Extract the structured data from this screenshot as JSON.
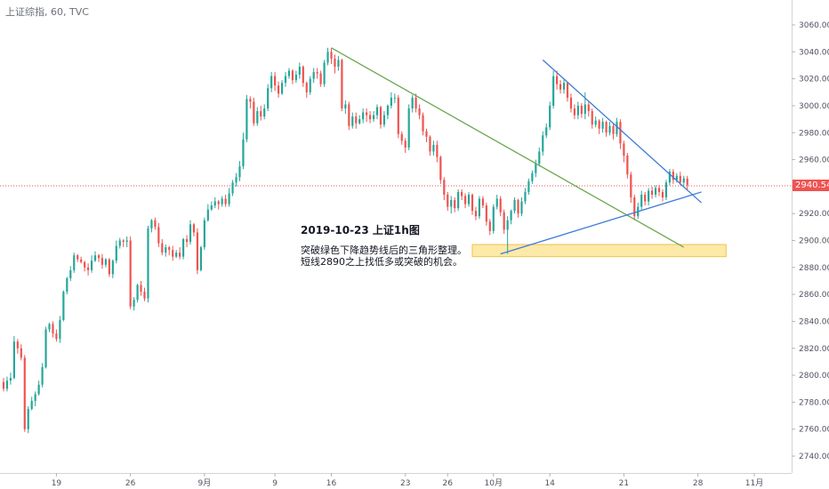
{
  "header": {
    "text": "上证综指, 60, TVC"
  },
  "last_price": {
    "label": "2940.542",
    "value": 2940.542,
    "color": "#ef5350"
  },
  "annotation": {
    "title": "2019-10-23 上证1h图",
    "lines": [
      "突破绿色下降趋势线后的三角形整理。",
      "短线2890之上找低多或突破的机会。"
    ]
  },
  "colors": {
    "up": "#26a69a",
    "down": "#ef5350",
    "green_line": "#6aa84f",
    "blue_line": "#3d7bd6",
    "zone_fill": "#fde9a8",
    "zone_stroke": "#f2c14e"
  },
  "chart_data": {
    "type": "candlestick",
    "title": "",
    "xlabel": "",
    "ylabel": "",
    "ylim": [
      2730,
      3070
    ],
    "y_ticks": [
      2740,
      2760,
      2780,
      2800,
      2820,
      2840,
      2860,
      2880,
      2900,
      2920,
      2940,
      2960,
      2980,
      3000,
      3020,
      3040,
      3060
    ],
    "y_tick_labels": [
      "2740.000",
      "2760.000",
      "2780.000",
      "2800.000",
      "2820.000",
      "2840.000",
      "2860.000",
      "2880.000",
      "2900.000",
      "2920.000",
      "2940.000",
      "2960.000",
      "2980.000",
      "3000.000",
      "3020.000",
      "3040.000",
      "3060.000"
    ],
    "x_ticks": [
      {
        "label": "19",
        "idx": 15
      },
      {
        "label": "26",
        "idx": 36
      },
      {
        "label": "9月",
        "idx": 57
      },
      {
        "label": "9",
        "idx": 77
      },
      {
        "label": "16",
        "idx": 93
      },
      {
        "label": "23",
        "idx": 114
      },
      {
        "label": "26",
        "idx": 126
      },
      {
        "label": "10月",
        "idx": 139
      },
      {
        "label": "14",
        "idx": 155
      },
      {
        "label": "21",
        "idx": 176
      },
      {
        "label": "28",
        "idx": 197
      },
      {
        "label": "11月",
        "idx": 213
      }
    ],
    "x_range": [
      0,
      232
    ],
    "grid": false,
    "trendlines": [
      {
        "name": "green-downtrend",
        "x1": 93,
        "y1": 3043,
        "x2": 193,
        "y2": 2895
      },
      {
        "name": "blue-upper",
        "x1": 153,
        "y1": 3034,
        "x2": 198,
        "y2": 2928
      },
      {
        "name": "blue-lower",
        "x1": 141,
        "y1": 2890,
        "x2": 198,
        "y2": 2936
      }
    ],
    "zone": {
      "x1": 133,
      "x2": 205,
      "y1": 2888,
      "y2": 2897
    },
    "candles": [
      [
        2795,
        2790,
        2798,
        2788
      ],
      [
        2790,
        2796,
        2799,
        2788
      ],
      [
        2796,
        2798,
        2802,
        2793
      ],
      [
        2798,
        2825,
        2829,
        2797
      ],
      [
        2825,
        2820,
        2827,
        2816
      ],
      [
        2820,
        2813,
        2823,
        2811
      ],
      [
        2813,
        2760,
        2815,
        2758
      ],
      [
        2760,
        2775,
        2777,
        2757
      ],
      [
        2775,
        2781,
        2784,
        2774
      ],
      [
        2781,
        2786,
        2788,
        2777
      ],
      [
        2786,
        2793,
        2796,
        2785
      ],
      [
        2793,
        2806,
        2809,
        2791
      ],
      [
        2806,
        2834,
        2836,
        2805
      ],
      [
        2834,
        2838,
        2839,
        2832
      ],
      [
        2838,
        2831,
        2840,
        2828
      ],
      [
        2831,
        2827,
        2834,
        2825
      ],
      [
        2827,
        2841,
        2844,
        2824
      ],
      [
        2841,
        2862,
        2863,
        2840
      ],
      [
        2862,
        2872,
        2873,
        2860
      ],
      [
        2872,
        2878,
        2881,
        2870
      ],
      [
        2878,
        2889,
        2891,
        2876
      ],
      [
        2889,
        2886,
        2890,
        2884
      ],
      [
        2886,
        2884,
        2888,
        2883
      ],
      [
        2884,
        2880,
        2885,
        2877
      ],
      [
        2880,
        2878,
        2883,
        2874
      ],
      [
        2878,
        2885,
        2889,
        2876
      ],
      [
        2885,
        2889,
        2892,
        2884
      ],
      [
        2889,
        2887,
        2890,
        2884
      ],
      [
        2887,
        2882,
        2890,
        2879
      ],
      [
        2882,
        2886,
        2887,
        2880
      ],
      [
        2886,
        2875,
        2887,
        2873
      ],
      [
        2875,
        2885,
        2886,
        2872
      ],
      [
        2885,
        2896,
        2900,
        2883
      ],
      [
        2896,
        2900,
        2902,
        2894
      ],
      [
        2900,
        2899,
        2901,
        2895
      ],
      [
        2899,
        2900,
        2903,
        2895
      ],
      [
        2900,
        2851,
        2903,
        2849
      ],
      [
        2851,
        2856,
        2858,
        2848
      ],
      [
        2856,
        2867,
        2868,
        2854
      ],
      [
        2867,
        2862,
        2870,
        2859
      ],
      [
        2862,
        2857,
        2865,
        2855
      ],
      [
        2857,
        2909,
        2911,
        2854
      ],
      [
        2909,
        2915,
        2916,
        2906
      ],
      [
        2915,
        2910,
        2917,
        2908
      ],
      [
        2910,
        2898,
        2913,
        2895
      ],
      [
        2898,
        2891,
        2901,
        2889
      ],
      [
        2891,
        2895,
        2897,
        2888
      ],
      [
        2895,
        2893,
        2896,
        2889
      ],
      [
        2893,
        2888,
        2896,
        2885
      ],
      [
        2888,
        2891,
        2893,
        2887
      ],
      [
        2891,
        2888,
        2895,
        2886
      ],
      [
        2888,
        2901,
        2902,
        2886
      ],
      [
        2901,
        2899,
        2904,
        2895
      ],
      [
        2899,
        2912,
        2915,
        2897
      ],
      [
        2912,
        2906,
        2913,
        2903
      ],
      [
        2906,
        2878,
        2909,
        2875
      ],
      [
        2878,
        2895,
        2896,
        2877
      ],
      [
        2895,
        2915,
        2917,
        2893
      ],
      [
        2915,
        2923,
        2927,
        2914
      ],
      [
        2923,
        2926,
        2929,
        2922
      ],
      [
        2926,
        2929,
        2932,
        2924
      ],
      [
        2929,
        2927,
        2930,
        2923
      ],
      [
        2927,
        2931,
        2933,
        2925
      ],
      [
        2931,
        2927,
        2934,
        2925
      ],
      [
        2927,
        2935,
        2939,
        2925
      ],
      [
        2935,
        2943,
        2945,
        2933
      ],
      [
        2943,
        2947,
        2950,
        2940
      ],
      [
        2947,
        2955,
        2959,
        2944
      ],
      [
        2955,
        2975,
        2980,
        2953
      ],
      [
        2975,
        3005,
        3008,
        2973
      ],
      [
        3005,
        3003,
        3007,
        2998
      ],
      [
        3003,
        2987,
        3006,
        2985
      ],
      [
        2987,
        2996,
        2999,
        2985
      ],
      [
        2996,
        2992,
        3000,
        2989
      ],
      [
        2992,
        2998,
        3001,
        2990
      ],
      [
        2998,
        3013,
        3016,
        2996
      ],
      [
        3013,
        3022,
        3025,
        3010
      ],
      [
        3022,
        3015,
        3025,
        3011
      ],
      [
        3015,
        3009,
        3018,
        3006
      ],
      [
        3009,
        3017,
        3019,
        3008
      ],
      [
        3017,
        3022,
        3025,
        3014
      ],
      [
        3022,
        3026,
        3028,
        3020
      ],
      [
        3026,
        3019,
        3027,
        3016
      ],
      [
        3019,
        3023,
        3026,
        3017
      ],
      [
        3023,
        3029,
        3032,
        3020
      ],
      [
        3029,
        3017,
        3030,
        3014
      ],
      [
        3017,
        3010,
        3018,
        3006
      ],
      [
        3010,
        3020,
        3022,
        3008
      ],
      [
        3020,
        3025,
        3028,
        3017
      ],
      [
        3025,
        3024,
        3028,
        3020
      ],
      [
        3024,
        3016,
        3026,
        3014
      ],
      [
        3016,
        3032,
        3034,
        3014
      ],
      [
        3032,
        3040,
        3043,
        3030
      ],
      [
        3040,
        3035,
        3043,
        3031
      ],
      [
        3035,
        3029,
        3038,
        3024
      ],
      [
        3029,
        3034,
        3037,
        3026
      ],
      [
        3034,
        2998,
        3035,
        2996
      ],
      [
        2998,
        3001,
        3004,
        2994
      ],
      [
        3001,
        2985,
        3003,
        2982
      ],
      [
        2985,
        2992,
        2995,
        2983
      ],
      [
        2992,
        2987,
        2995,
        2983
      ],
      [
        2987,
        2990,
        2993,
        2986
      ],
      [
        2990,
        2995,
        2998,
        2987
      ],
      [
        2995,
        2993,
        2998,
        2988
      ],
      [
        2993,
        2990,
        2996,
        2987
      ],
      [
        2990,
        2993,
        2996,
        2988
      ],
      [
        2993,
        2999,
        3001,
        2990
      ],
      [
        2999,
        2986,
        3000,
        2983
      ],
      [
        2986,
        2993,
        2996,
        2984
      ],
      [
        2993,
        3000,
        3001,
        2990
      ],
      [
        3000,
        3006,
        3010,
        2998
      ],
      [
        3006,
        3006,
        3009,
        3002
      ],
      [
        3006,
        2979,
        3008,
        2976
      ],
      [
        2979,
        2974,
        2981,
        2971
      ],
      [
        2974,
        2969,
        2976,
        2965
      ],
      [
        2969,
        2998,
        3001,
        2967
      ],
      [
        2998,
        3006,
        3008,
        2995
      ],
      [
        3006,
        2998,
        3009,
        2995
      ],
      [
        2998,
        2993,
        3001,
        2990
      ],
      [
        2993,
        2981,
        2995,
        2978
      ],
      [
        2981,
        2977,
        2983,
        2973
      ],
      [
        2977,
        2966,
        2978,
        2963
      ],
      [
        2966,
        2971,
        2974,
        2963
      ],
      [
        2971,
        2962,
        2974,
        2958
      ],
      [
        2962,
        2945,
        2963,
        2942
      ],
      [
        2945,
        2934,
        2947,
        2930
      ],
      [
        2934,
        2925,
        2936,
        2922
      ],
      [
        2925,
        2930,
        2933,
        2920
      ],
      [
        2930,
        2924,
        2932,
        2921
      ],
      [
        2924,
        2936,
        2938,
        2922
      ],
      [
        2936,
        2933,
        2938,
        2930
      ],
      [
        2933,
        2927,
        2935,
        2924
      ],
      [
        2927,
        2934,
        2936,
        2925
      ],
      [
        2934,
        2922,
        2935,
        2919
      ],
      [
        2922,
        2918,
        2925,
        2915
      ],
      [
        2918,
        2931,
        2933,
        2916
      ],
      [
        2931,
        2926,
        2933,
        2924
      ],
      [
        2926,
        2914,
        2928,
        2911
      ],
      [
        2914,
        2907,
        2916,
        2904
      ],
      [
        2907,
        2925,
        2927,
        2905
      ],
      [
        2925,
        2931,
        2934,
        2923
      ],
      [
        2931,
        2921,
        2933,
        2918
      ],
      [
        2921,
        2908,
        2923,
        2905
      ],
      [
        2908,
        2915,
        2918,
        2890
      ],
      [
        2915,
        2922,
        2923,
        2912
      ],
      [
        2922,
        2930,
        2932,
        2920
      ],
      [
        2930,
        2920,
        2931,
        2917
      ],
      [
        2920,
        2929,
        2932,
        2918
      ],
      [
        2929,
        2936,
        2939,
        2927
      ],
      [
        2936,
        2944,
        2946,
        2934
      ],
      [
        2944,
        2950,
        2952,
        2942
      ],
      [
        2950,
        2957,
        2960,
        2947
      ],
      [
        2957,
        2966,
        2969,
        2955
      ],
      [
        2966,
        2978,
        2981,
        2963
      ],
      [
        2978,
        2984,
        2987,
        2976
      ],
      [
        2984,
        3000,
        3003,
        2982
      ],
      [
        3000,
        3022,
        3026,
        2998
      ],
      [
        3022,
        3016,
        3026,
        3012
      ],
      [
        3016,
        3012,
        3019,
        3009
      ],
      [
        3012,
        3017,
        3020,
        3009
      ],
      [
        3017,
        3006,
        3018,
        3003
      ],
      [
        3006,
        2998,
        3009,
        2995
      ],
      [
        2998,
        2993,
        3001,
        2990
      ],
      [
        2993,
        3000,
        3003,
        2990
      ],
      [
        3000,
        2994,
        3002,
        2991
      ],
      [
        2994,
        3001,
        3010,
        2990
      ],
      [
        3001,
        2996,
        3003,
        2992
      ],
      [
        2996,
        2986,
        2998,
        2983
      ],
      [
        2986,
        2989,
        2992,
        2984
      ],
      [
        2989,
        2983,
        2990,
        2979
      ],
      [
        2983,
        2988,
        2991,
        2980
      ],
      [
        2988,
        2980,
        2989,
        2977
      ],
      [
        2980,
        2985,
        2988,
        2978
      ],
      [
        2985,
        2979,
        2987,
        2975
      ],
      [
        2979,
        2988,
        2991,
        2977
      ],
      [
        2988,
        2972,
        2990,
        2968
      ],
      [
        2972,
        2963,
        2974,
        2958
      ],
      [
        2963,
        2949,
        2965,
        2946
      ],
      [
        2949,
        2932,
        2951,
        2928
      ],
      [
        2932,
        2918,
        2934,
        2915
      ],
      [
        2918,
        2925,
        2928,
        2916
      ],
      [
        2925,
        2934,
        2937,
        2922
      ],
      [
        2934,
        2929,
        2936,
        2926
      ],
      [
        2929,
        2937,
        2939,
        2926
      ],
      [
        2937,
        2934,
        2940,
        2931
      ],
      [
        2934,
        2939,
        2941,
        2932
      ],
      [
        2939,
        2936,
        2941,
        2933
      ],
      [
        2936,
        2932,
        2938,
        2929
      ],
      [
        2932,
        2943,
        2945,
        2930
      ],
      [
        2943,
        2951,
        2953,
        2941
      ],
      [
        2951,
        2945,
        2953,
        2942
      ],
      [
        2945,
        2948,
        2950,
        2943
      ],
      [
        2948,
        2943,
        2951,
        2941
      ],
      [
        2943,
        2946,
        2948,
        2940
      ],
      [
        2946,
        2941,
        2948,
        2937
      ]
    ]
  }
}
